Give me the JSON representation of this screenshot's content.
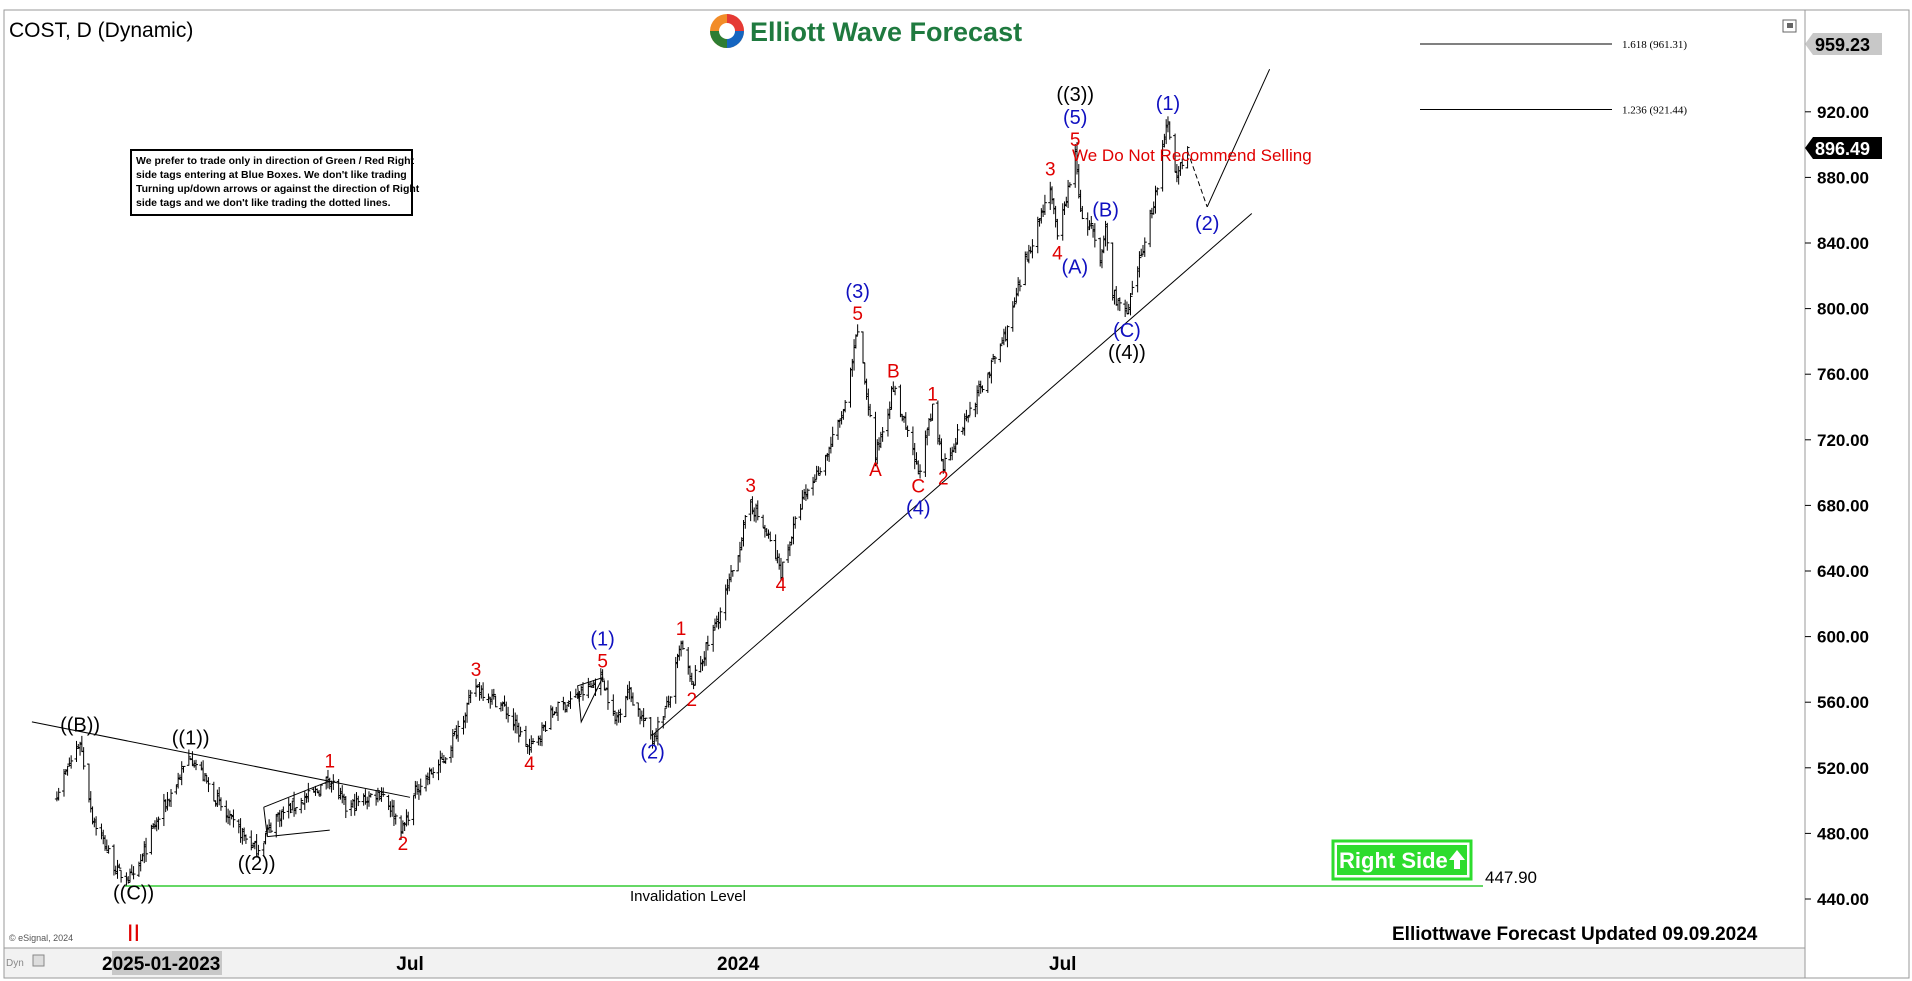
{
  "symbol_title": "COST, D (Dynamic)",
  "brand": {
    "name": "Elliott Wave Forecast"
  },
  "disclaimer": [
    "We prefer to trade only in direction of Green / Red Right",
    "side tags entering at Blue Boxes. We don't like trading",
    "Turning up/down arrows or against the direction of Right",
    "side tags and we don't like trading the dotted lines."
  ],
  "recommendation": "We Do Not Recommend Selling",
  "right_side_tag": {
    "label": "Right Side",
    "arrow": "up-arrow-icon",
    "color": "#2edc2e"
  },
  "invalidation": {
    "label": "Invalidation Level",
    "value": "447.90"
  },
  "updated": "Elliottwave Forecast Updated 09.09.2024",
  "copyright": "© eSignal, 2024",
  "corner_text": "Dyn",
  "price_tags": {
    "last": "896.49",
    "high": "959.23"
  },
  "fib_levels": [
    {
      "label": "1.618 (961.31)",
      "value": 961.31
    },
    {
      "label": "1.236 (921.44)",
      "value": 921.44
    }
  ],
  "colors": {
    "wave_black": "#000000",
    "wave_blue": "#1010c0",
    "wave_red": "#e00000",
    "invalidation_line": "#33cc33"
  },
  "chart_data": {
    "type": "bar",
    "ylim": [
      425,
      965
    ],
    "ytick_labels": [
      "440.00",
      "480.00",
      "520.00",
      "560.00",
      "600.00",
      "640.00",
      "680.00",
      "720.00",
      "760.00",
      "800.00",
      "840.00",
      "880.00",
      "920.00"
    ],
    "xtick_labels": [
      {
        "label": "2025-01-2023",
        "date": "2023-01-25"
      },
      {
        "label": "Jul",
        "date": "2023-07-01"
      },
      {
        "label": "2024",
        "date": "2024-01-01"
      },
      {
        "label": "Jul",
        "date": "2024-07-01"
      }
    ],
    "price_path": [
      [
        "2022-12-15",
        505
      ],
      [
        "2022-12-28",
        536
      ],
      [
        "2023-01-04",
        490
      ],
      [
        "2023-01-18",
        456
      ],
      [
        "2023-01-27",
        452
      ],
      [
        "2023-02-08",
        485
      ],
      [
        "2023-02-28",
        528
      ],
      [
        "2023-03-20",
        490
      ],
      [
        "2023-04-06",
        470
      ],
      [
        "2023-04-17",
        490
      ],
      [
        "2023-05-09",
        505
      ],
      [
        "2023-05-17",
        514
      ],
      [
        "2023-05-26",
        495
      ],
      [
        "2023-06-15",
        506
      ],
      [
        "2023-06-27",
        482
      ],
      [
        "2023-07-05",
        508
      ],
      [
        "2023-07-20",
        525
      ],
      [
        "2023-08-07",
        570
      ],
      [
        "2023-08-22",
        558
      ],
      [
        "2023-09-06",
        531
      ],
      [
        "2023-09-20",
        555
      ],
      [
        "2023-10-05",
        565
      ],
      [
        "2023-10-17",
        575
      ],
      [
        "2023-10-24",
        548
      ],
      [
        "2023-10-31",
        568
      ],
      [
        "2023-11-14",
        538
      ],
      [
        "2023-11-23",
        560
      ],
      [
        "2023-11-30",
        595
      ],
      [
        "2023-12-06",
        570
      ],
      [
        "2023-12-22",
        615
      ],
      [
        "2023-12-29",
        640
      ],
      [
        "2024-01-08",
        682
      ],
      [
        "2024-01-18",
        660
      ],
      [
        "2024-01-25",
        640
      ],
      [
        "2024-02-05",
        680
      ],
      [
        "2024-02-20",
        712
      ],
      [
        "2024-03-01",
        740
      ],
      [
        "2024-03-08",
        787
      ],
      [
        "2024-03-18",
        710
      ],
      [
        "2024-03-28",
        752
      ],
      [
        "2024-04-11",
        700
      ],
      [
        "2024-04-19",
        738
      ],
      [
        "2024-04-25",
        705
      ],
      [
        "2024-05-20",
        760
      ],
      [
        "2024-06-01",
        790
      ],
      [
        "2024-06-11",
        832
      ],
      [
        "2024-06-24",
        875
      ],
      [
        "2024-06-28",
        842
      ],
      [
        "2024-07-08",
        893
      ],
      [
        "2024-07-12",
        852
      ],
      [
        "2024-07-17",
        850
      ],
      [
        "2024-07-22",
        825
      ],
      [
        "2024-07-25",
        850
      ],
      [
        "2024-07-29",
        810
      ],
      [
        "2024-08-06",
        795
      ],
      [
        "2024-08-22",
        870
      ],
      [
        "2024-08-29",
        915
      ],
      [
        "2024-09-03",
        880
      ],
      [
        "2024-09-09",
        896
      ]
    ],
    "wave_labels": [
      {
        "text": "((B))",
        "date": "2022-12-28",
        "price": 536,
        "color": "black",
        "pos": "above"
      },
      {
        "text": "((C))",
        "date": "2023-01-27",
        "price": 452,
        "color": "black",
        "pos": "below"
      },
      {
        "text": "II",
        "date": "2023-01-27",
        "price": 440,
        "color": "red",
        "pos": "below2"
      },
      {
        "text": "((1))",
        "date": "2023-02-28",
        "price": 528,
        "color": "black",
        "pos": "above"
      },
      {
        "text": "((2))",
        "date": "2023-04-06",
        "price": 470,
        "color": "black",
        "pos": "below"
      },
      {
        "text": "1",
        "date": "2023-05-17",
        "price": 514,
        "color": "red",
        "pos": "above"
      },
      {
        "text": "2",
        "date": "2023-06-27",
        "price": 482,
        "color": "red",
        "pos": "below"
      },
      {
        "text": "3",
        "date": "2023-08-07",
        "price": 570,
        "color": "red",
        "pos": "above"
      },
      {
        "text": "4",
        "date": "2023-09-06",
        "price": 531,
        "color": "red",
        "pos": "below"
      },
      {
        "text": "5",
        "date": "2023-10-17",
        "price": 575,
        "color": "red",
        "pos": "above"
      },
      {
        "text": "(1)",
        "date": "2023-10-17",
        "price": 575,
        "color": "blue",
        "pos": "above2"
      },
      {
        "text": "(2)",
        "date": "2023-11-14",
        "price": 538,
        "color": "blue",
        "pos": "below"
      },
      {
        "text": "1",
        "date": "2023-11-30",
        "price": 595,
        "color": "red",
        "pos": "above"
      },
      {
        "text": "2",
        "date": "2023-12-06",
        "price": 570,
        "color": "red",
        "pos": "below"
      },
      {
        "text": "3",
        "date": "2024-01-08",
        "price": 682,
        "color": "red",
        "pos": "above"
      },
      {
        "text": "4",
        "date": "2024-01-25",
        "price": 640,
        "color": "red",
        "pos": "below"
      },
      {
        "text": "5",
        "date": "2024-03-08",
        "price": 787,
        "color": "red",
        "pos": "above"
      },
      {
        "text": "(3)",
        "date": "2024-03-08",
        "price": 787,
        "color": "blue",
        "pos": "above2"
      },
      {
        "text": "A",
        "date": "2024-03-18",
        "price": 710,
        "color": "red",
        "pos": "below"
      },
      {
        "text": "B",
        "date": "2024-03-28",
        "price": 752,
        "color": "red",
        "pos": "above"
      },
      {
        "text": "C",
        "date": "2024-04-11",
        "price": 700,
        "color": "red",
        "pos": "below"
      },
      {
        "text": "(4)",
        "date": "2024-04-11",
        "price": 700,
        "color": "blue",
        "pos": "below2"
      },
      {
        "text": "1",
        "date": "2024-04-19",
        "price": 738,
        "color": "red",
        "pos": "above"
      },
      {
        "text": "2",
        "date": "2024-04-25",
        "price": 705,
        "color": "red",
        "pos": "below"
      },
      {
        "text": "3",
        "date": "2024-06-24",
        "price": 875,
        "color": "red",
        "pos": "above"
      },
      {
        "text": "4",
        "date": "2024-06-28",
        "price": 842,
        "color": "red",
        "pos": "below"
      },
      {
        "text": "5",
        "date": "2024-07-08",
        "price": 893,
        "color": "red",
        "pos": "above"
      },
      {
        "text": "(5)",
        "date": "2024-07-08",
        "price": 893,
        "color": "blue",
        "pos": "above2"
      },
      {
        "text": "((3))",
        "date": "2024-07-08",
        "price": 893,
        "color": "black",
        "pos": "above3"
      },
      {
        "text": "(A)",
        "date": "2024-07-22",
        "price": 825,
        "color": "blue",
        "pos": "left"
      },
      {
        "text": "(B)",
        "date": "2024-07-25",
        "price": 850,
        "color": "blue",
        "pos": "above"
      },
      {
        "text": "(C)",
        "date": "2024-08-06",
        "price": 795,
        "color": "blue",
        "pos": "below"
      },
      {
        "text": "((4))",
        "date": "2024-08-06",
        "price": 795,
        "color": "black",
        "pos": "below2"
      },
      {
        "text": "(1)",
        "date": "2024-08-29",
        "price": 915,
        "color": "blue",
        "pos": "above"
      },
      {
        "text": "(2)",
        "date": "2024-09-20",
        "price": 860,
        "color": "blue",
        "pos": "below"
      }
    ],
    "projection": [
      [
        "2024-09-09",
        896
      ],
      [
        "2024-09-20",
        862
      ],
      [
        "2024-10-25",
        946
      ]
    ],
    "trendlines": [
      {
        "from": [
          "2022-12-01",
          548
        ],
        "to": [
          "2023-07-01",
          502
        ],
        "style": "solid"
      },
      {
        "from": [
          "2023-11-14",
          540
        ],
        "to": [
          "2024-10-15",
          858
        ],
        "style": "solid"
      }
    ],
    "triangles": [
      {
        "points": [
          [
            "2023-04-10",
            496
          ],
          [
            "2023-05-17",
            512
          ],
          [
            "2023-04-12",
            478
          ],
          [
            "2023-05-17",
            482
          ]
        ]
      },
      {
        "points": [
          [
            "2023-10-03",
            570
          ],
          [
            "2023-10-17",
            575
          ],
          [
            "2023-10-05",
            548
          ]
        ]
      }
    ]
  }
}
